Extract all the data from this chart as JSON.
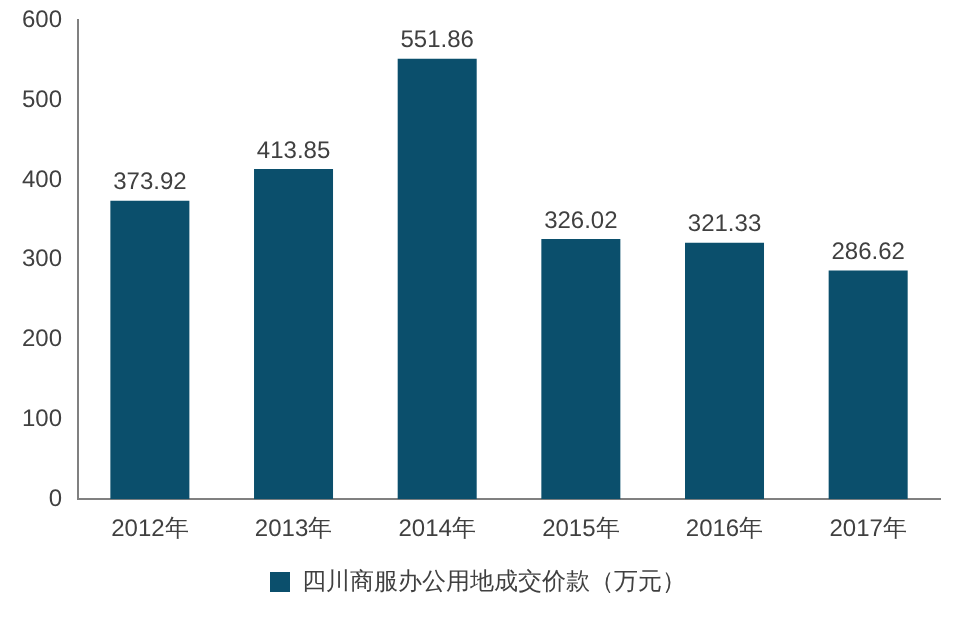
{
  "chart_data": {
    "type": "bar",
    "categories": [
      "2012年",
      "2013年",
      "2014年",
      "2015年",
      "2016年",
      "2017年"
    ],
    "series": [
      {
        "name": "四川商服办公用地成交价款（万元）",
        "color": "#0b4f6c",
        "values": [
          373.92,
          413.85,
          551.86,
          326.02,
          321.33,
          286.62
        ]
      }
    ],
    "ylim": [
      0,
      600
    ],
    "yticks": [
      0,
      100,
      200,
      300,
      400,
      500,
      600
    ],
    "grid": false,
    "legend": "bottom",
    "data_labels": true
  }
}
